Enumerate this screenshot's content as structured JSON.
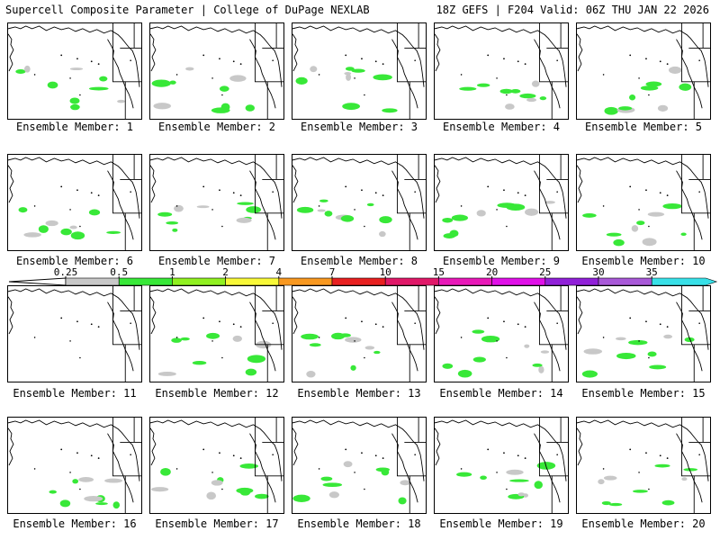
{
  "header": {
    "title_left": "Supercell Composite Parameter | College of DuPage NEXLAB",
    "title_right": "18Z GEFS | F204 Valid: 06Z THU JAN 22 2026"
  },
  "members": [
    {
      "label": "Ensemble Member: 1"
    },
    {
      "label": "Ensemble Member: 2"
    },
    {
      "label": "Ensemble Member: 3"
    },
    {
      "label": "Ensemble Member: 4"
    },
    {
      "label": "Ensemble Member: 5"
    },
    {
      "label": "Ensemble Member: 6"
    },
    {
      "label": "Ensemble Member: 7"
    },
    {
      "label": "Ensemble Member: 8"
    },
    {
      "label": "Ensemble Member: 9"
    },
    {
      "label": "Ensemble Member: 10"
    },
    {
      "label": "Ensemble Member: 11"
    },
    {
      "label": "Ensemble Member: 12"
    },
    {
      "label": "Ensemble Member: 13"
    },
    {
      "label": "Ensemble Member: 14"
    },
    {
      "label": "Ensemble Member: 15"
    },
    {
      "label": "Ensemble Member: 16"
    },
    {
      "label": "Ensemble Member: 17"
    },
    {
      "label": "Ensemble Member: 18"
    },
    {
      "label": "Ensemble Member: 19"
    },
    {
      "label": "Ensemble Member: 20"
    }
  ],
  "colorbar": {
    "ticks": [
      "0.25",
      "0.5",
      "1",
      "2",
      "4",
      "7",
      "10",
      "15",
      "20",
      "25",
      "30",
      "35"
    ],
    "colors": [
      "#c8c8c8",
      "#38e838",
      "#90f020",
      "#f8f838",
      "#f89820",
      "#e82020",
      "#e01868",
      "#e818b8",
      "#e010e8",
      "#9020d8",
      "#a858d8",
      "#38e0e8"
    ]
  }
}
